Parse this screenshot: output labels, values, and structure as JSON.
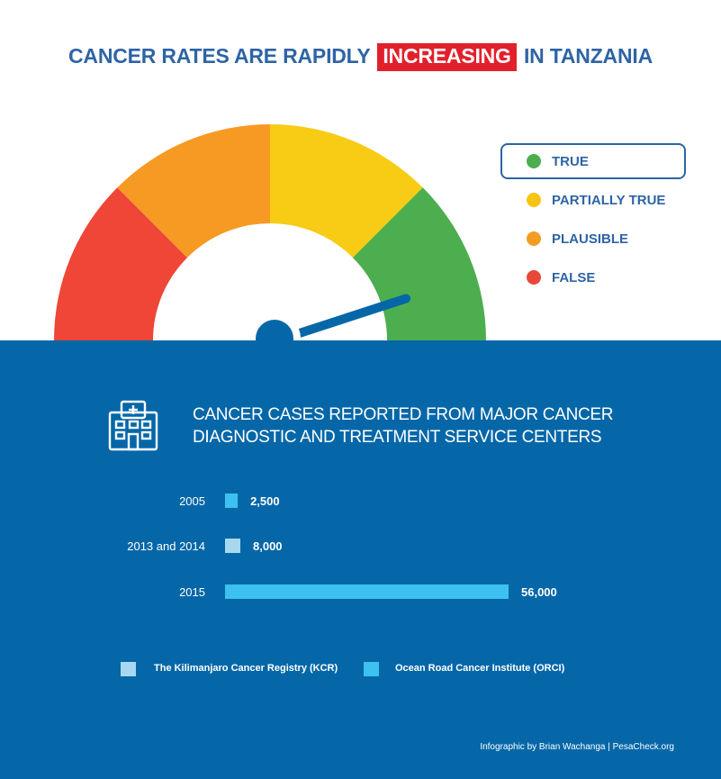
{
  "headline": {
    "before": "CANCER RATES ARE RAPIDLY",
    "highlight": "INCREASING",
    "after": "IN TANZANIA"
  },
  "rating_legend": [
    {
      "label": "TRUE",
      "color": "#4cae4f",
      "selected": true
    },
    {
      "label": "PARTIALLY TRUE",
      "color": "#f6c514"
    },
    {
      "label": "PLAUSIBLE",
      "color": "#f39c22"
    },
    {
      "label": "FALSE",
      "color": "#e8473a"
    }
  ],
  "gauge": {
    "segments": [
      {
        "rating": "FALSE",
        "color": "#ef4638"
      },
      {
        "rating": "PLAUSIBLE",
        "color": "#f79a24"
      },
      {
        "rating": "PARTIALLY TRUE",
        "color": "#f8cb14"
      },
      {
        "rating": "TRUE",
        "color": "#4cae4f"
      }
    ],
    "needle_rating": "TRUE",
    "needle_color": "#0567a8"
  },
  "panel": {
    "title_line1": "CANCER CASES REPORTED FROM MAJOR CANCER",
    "title_line2": "DIAGNOSTIC AND TREATMENT SERVICE CENTERS",
    "credit": "Infographic by Brian Wachanga | PesaCheck.org"
  },
  "chart_data": {
    "type": "bar",
    "orientation": "horizontal",
    "categories": [
      "2005",
      "2013 and 2014",
      "2015"
    ],
    "values": [
      2500,
      8000,
      56000
    ],
    "value_labels": [
      "2,500",
      "8,000",
      "56,000"
    ],
    "bar_sources": [
      "Ocean Road Cancer Institute (ORCI)",
      "The Kilimanjaro Cancer Registry (KCR)",
      "Ocean Road Cancer Institute (ORCI)"
    ],
    "series_legend": [
      {
        "name": "The Kilimanjaro Cancer Registry (KCR)",
        "color": "#a8d8f0"
      },
      {
        "name": "Ocean Road Cancer Institute (ORCI)",
        "color": "#3cc1f0"
      }
    ],
    "xlim": [
      0,
      56000
    ],
    "grid": false
  }
}
